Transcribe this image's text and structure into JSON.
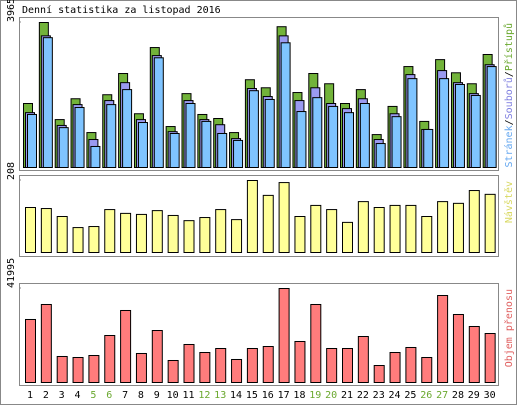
{
  "chart_data": [
    {
      "type": "bar",
      "title": "Denní statistika za listopad 2016",
      "legend_separator": "/",
      "ylim": [
        0,
        3965
      ],
      "yticks": [
        3965
      ],
      "series": [
        {
          "name": "Stránek",
          "color": "#7fc4ff",
          "text_color": "#66a8f0",
          "values": [
            1450,
            3550,
            1090,
            1640,
            575,
            1720,
            2130,
            1230,
            3000,
            930,
            1750,
            1260,
            930,
            740,
            2100,
            1860,
            3410,
            1530,
            1910,
            1670,
            1500,
            1750,
            655,
            1390,
            2430,
            1040,
            2430,
            2270,
            1970,
            2760
          ]
        },
        {
          "name": "Souborů",
          "color": "#9a9af0",
          "text_color": "#8080e0",
          "values": [
            1500,
            3600,
            1150,
            1720,
            765,
            1830,
            2320,
            1310,
            3060,
            980,
            1830,
            1310,
            1170,
            790,
            2160,
            1940,
            3600,
            1830,
            2180,
            1750,
            1610,
            1880,
            765,
            1470,
            2540,
            1040,
            2650,
            2320,
            2020,
            2810
          ]
        },
        {
          "name": "Přístupů",
          "color": "#72b33a",
          "text_color": "#6aa82e",
          "values": [
            1750,
            3965,
            1310,
            1880,
            955,
            1990,
            2570,
            1470,
            3280,
            1120,
            2020,
            1450,
            1340,
            955,
            2400,
            2180,
            3850,
            2050,
            2570,
            2290,
            1750,
            2130,
            900,
            1670,
            2760,
            1260,
            2950,
            2590,
            2290,
            3090
          ]
        }
      ]
    },
    {
      "type": "bar",
      "ylim": [
        0,
        208
      ],
      "yticks": [
        208
      ],
      "series": [
        {
          "name": "Návštěv",
          "color": "#ffff99",
          "text_color": "#d8d860",
          "values": [
            130,
            127,
            104,
            72,
            75,
            124,
            113,
            110,
            121,
            107,
            92,
            101,
            124,
            95,
            208,
            165,
            202,
            104,
            136,
            124,
            87,
            147,
            130,
            136,
            136,
            104,
            147,
            142,
            179,
            168
          ]
        }
      ]
    },
    {
      "type": "bar",
      "ylim": [
        0,
        41995
      ],
      "yticks": [
        41995
      ],
      "categories": [
        "1",
        "2",
        "3",
        "4",
        "5",
        "6",
        "7",
        "8",
        "9",
        "10",
        "11",
        "12",
        "13",
        "14",
        "15",
        "16",
        "17",
        "18",
        "19",
        "20",
        "21",
        "22",
        "23",
        "24",
        "25",
        "26",
        "27",
        "28",
        "29",
        "30"
      ],
      "category_colors": [
        "#000",
        "#000",
        "#000",
        "#000",
        "#6aa82e",
        "#6aa82e",
        "#000",
        "#000",
        "#000",
        "#000",
        "#000",
        "#6aa82e",
        "#6aa82e",
        "#000",
        "#000",
        "#000",
        "#000",
        "#000",
        "#6aa82e",
        "#6aa82e",
        "#000",
        "#000",
        "#000",
        "#000",
        "#000",
        "#6aa82e",
        "#6aa82e",
        "#000",
        "#000",
        "#000"
      ],
      "series": [
        {
          "name": "Objem přenosu",
          "color": "#ff7c7c",
          "text_color": "#e06060",
          "values": [
            28150,
            34850,
            11620,
            11170,
            12060,
            21000,
            32170,
            12960,
            23230,
            9830,
            16980,
            13400,
            15190,
            10280,
            15190,
            16080,
            41995,
            18320,
            34850,
            15190,
            15190,
            20550,
            7590,
            13400,
            15640,
            11170,
            38870,
            30380,
            25020,
            21890
          ]
        }
      ]
    }
  ]
}
